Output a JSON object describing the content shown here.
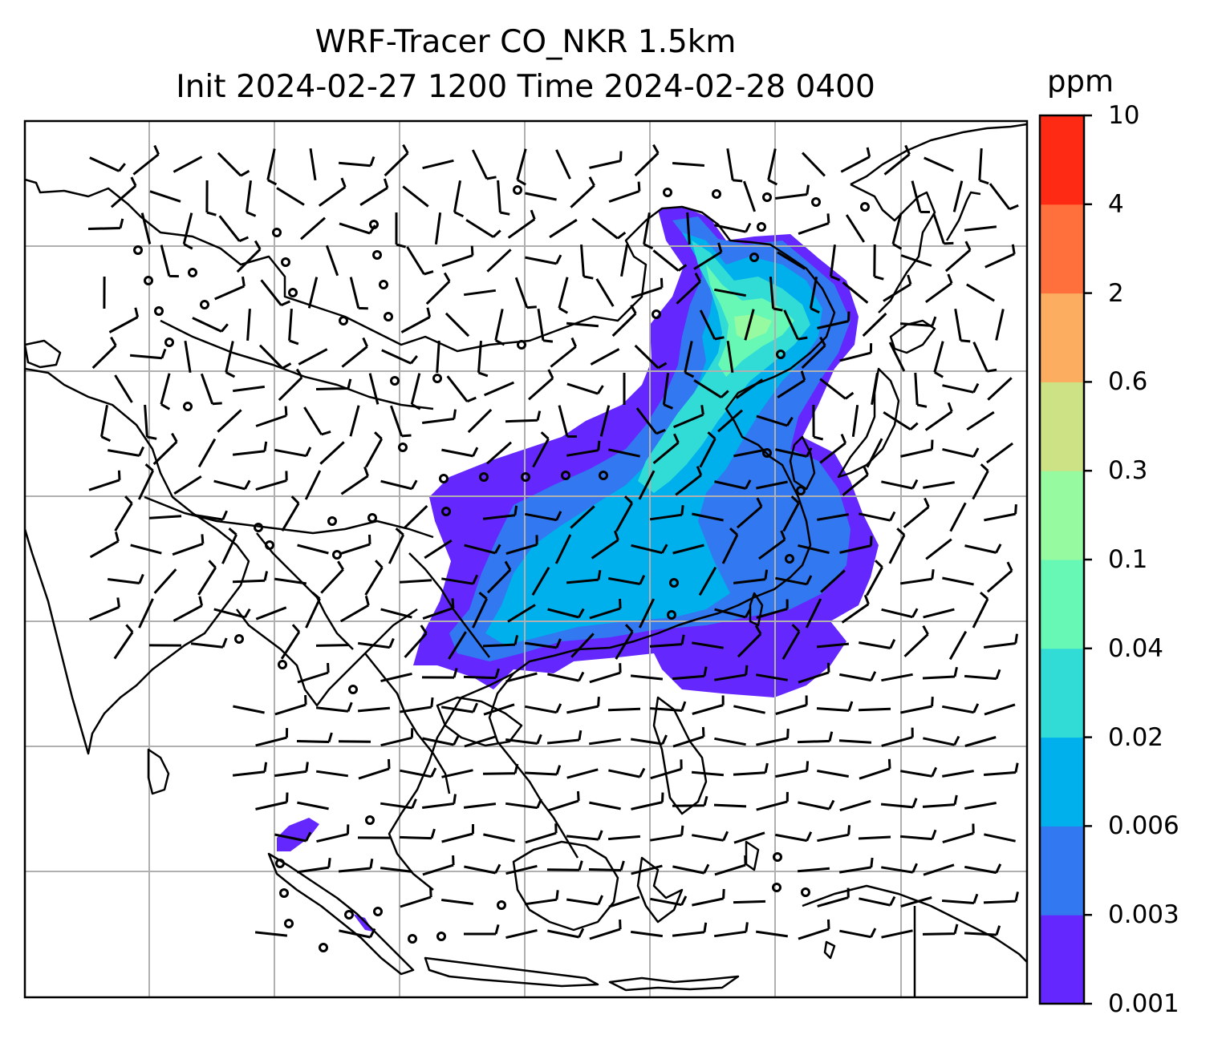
{
  "title": {
    "line1": "WRF-Tracer CO_NKR 1.5km",
    "line2": "Init 2024-02-27 1200 Time 2024-02-28 0400"
  },
  "colorbar": {
    "unit": "ppm",
    "levels": [
      "0.001",
      "0.003",
      "0.006",
      "0.02",
      "0.04",
      "0.1",
      "0.3",
      "0.6",
      "2",
      "4",
      "10"
    ],
    "colors": [
      "#6428ff",
      "#3278f0",
      "#00b0ec",
      "#32dcd6",
      "#66f8b4",
      "#96faa0",
      "#cde284",
      "#fcad60",
      "#ff703c",
      "#ff2a14"
    ]
  },
  "map": {
    "background": "#ffffff",
    "coastline_color": "#000000",
    "gridline_color": "#b0b0b0",
    "barb_color": "#000000"
  }
}
